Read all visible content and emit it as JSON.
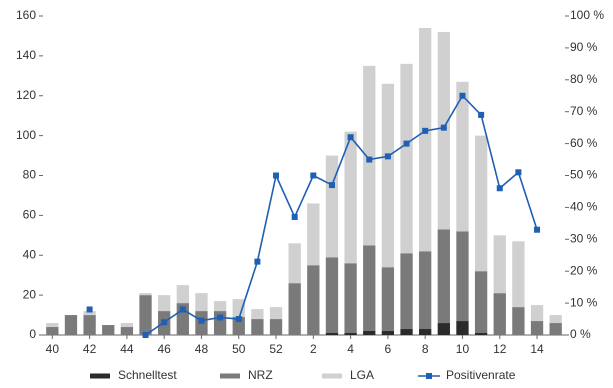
{
  "chart_data": {
    "type": "bar",
    "stacked": true,
    "categories": [
      "40",
      null,
      "42",
      null,
      "44",
      null,
      "46",
      null,
      "48",
      null,
      "50",
      null,
      "52",
      null,
      "2",
      null,
      "4",
      null,
      "6",
      null,
      "8",
      null,
      "10",
      null,
      "12",
      null,
      "14",
      null
    ],
    "series": [
      {
        "name": "Schnelltest",
        "color": "#2b2b2b",
        "values": [
          0,
          0,
          0,
          0,
          0,
          0,
          0,
          0,
          0,
          0,
          0,
          0,
          0,
          0,
          0,
          1,
          1,
          2,
          2,
          3,
          3,
          6,
          7,
          1,
          0,
          0,
          0,
          0
        ]
      },
      {
        "name": "NRZ",
        "color": "#7a7a7a",
        "values": [
          4,
          10,
          10,
          5,
          4,
          20,
          12,
          16,
          12,
          12,
          9,
          8,
          8,
          26,
          35,
          38,
          35,
          43,
          32,
          38,
          39,
          47,
          45,
          31,
          21,
          14,
          7,
          6
        ]
      },
      {
        "name": "LGA",
        "color": "#d0d0d0",
        "values": [
          2,
          0,
          2,
          0,
          2,
          1,
          8,
          9,
          9,
          5,
          9,
          5,
          6,
          20,
          31,
          51,
          66,
          90,
          92,
          95,
          112,
          99,
          75,
          68,
          29,
          33,
          8,
          4
        ]
      },
      {
        "name": "Positivenrate",
        "type": "line",
        "axis": "y2",
        "color": "#1f5fb4",
        "values": [
          null,
          null,
          8,
          null,
          null,
          0,
          4,
          8,
          4.5,
          5.5,
          5,
          23,
          50,
          37,
          50,
          47,
          62,
          55,
          56,
          60,
          64,
          65,
          75,
          69,
          46,
          51,
          33,
          null
        ]
      }
    ],
    "ylim": [
      0,
      160
    ],
    "yticks": [
      0,
      20,
      40,
      60,
      80,
      100,
      120,
      140,
      160
    ],
    "y2lim": [
      0,
      100
    ],
    "y2ticks": [
      {
        "value": 0,
        "label": "0 %"
      },
      {
        "value": 10,
        "label": "10 %"
      },
      {
        "value": 20,
        "label": "20 %"
      },
      {
        "value": 30,
        "label": "30 %"
      },
      {
        "value": 40,
        "label": "40 %"
      },
      {
        "value": 50,
        "label": "50 %"
      },
      {
        "value": 60,
        "label": "60 %"
      },
      {
        "value": 70,
        "label": "70 %"
      },
      {
        "value": 80,
        "label": "80 %"
      },
      {
        "value": 90,
        "label": "90 %"
      },
      {
        "value": 100,
        "label": "100 %"
      }
    ],
    "grid": false,
    "legend": "bottom"
  }
}
